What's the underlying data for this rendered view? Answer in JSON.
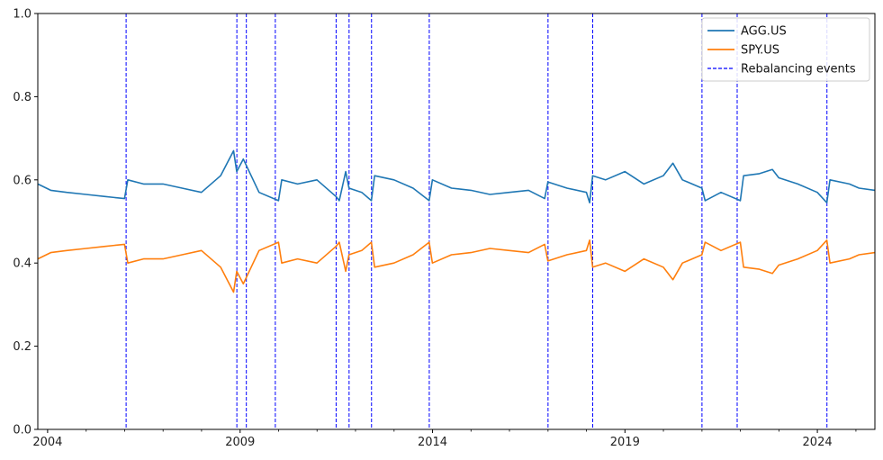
{
  "chart_data": {
    "type": "line",
    "x_type": "date",
    "xlim": [
      "2003-09-30",
      "2025-06-30"
    ],
    "ylim": [
      0,
      1
    ],
    "yticks": [
      0.0,
      0.2,
      0.4,
      0.6,
      0.8,
      1.0
    ],
    "ytick_labels": [
      "0.0",
      "0.2",
      "0.4",
      "0.6",
      "0.8",
      "1.0"
    ],
    "xticks": [
      "2004-01-01",
      "2009-01-01",
      "2014-01-01",
      "2019-01-01",
      "2024-01-01"
    ],
    "xtick_labels": [
      "2004",
      "2009",
      "2014",
      "2019",
      "2024"
    ],
    "grid": false,
    "legend_position": "top-right",
    "legend": [
      "AGG.US",
      "SPY.US",
      "Rebalancing events"
    ],
    "series": [
      {
        "name": "AGG.US",
        "color": "#1f77b4",
        "x": [
          "2003-09-30",
          "2004-01-31",
          "2004-06-30",
          "2004-12-31",
          "2005-06-30",
          "2005-12-31",
          "2006-01-31",
          "2006-06-30",
          "2006-12-31",
          "2007-06-30",
          "2007-12-31",
          "2008-06-30",
          "2008-10-31",
          "2008-11-30",
          "2009-01-31",
          "2009-06-30",
          "2009-12-31",
          "2010-01-31",
          "2010-06-30",
          "2010-12-31",
          "2011-06-30",
          "2011-07-31",
          "2011-09-30",
          "2011-10-31",
          "2012-02-29",
          "2012-05-31",
          "2012-06-30",
          "2012-12-31",
          "2013-06-30",
          "2013-11-30",
          "2013-12-31",
          "2014-06-30",
          "2014-12-31",
          "2015-06-30",
          "2015-12-31",
          "2016-06-30",
          "2016-11-30",
          "2016-12-31",
          "2017-06-30",
          "2017-12-31",
          "2018-01-31",
          "2018-02-28",
          "2018-06-30",
          "2018-12-31",
          "2019-06-30",
          "2019-12-31",
          "2020-03-31",
          "2020-06-30",
          "2020-12-31",
          "2021-01-31",
          "2021-06-30",
          "2021-12-31",
          "2022-01-31",
          "2022-06-30",
          "2022-10-31",
          "2022-12-31",
          "2023-06-30",
          "2023-12-31",
          "2024-03-31",
          "2024-04-30",
          "2024-10-31",
          "2025-01-31",
          "2025-06-30"
        ],
        "values": [
          0.59,
          0.575,
          0.57,
          0.565,
          0.56,
          0.555,
          0.6,
          0.59,
          0.59,
          0.58,
          0.57,
          0.61,
          0.67,
          0.62,
          0.65,
          0.57,
          0.55,
          0.6,
          0.59,
          0.6,
          0.56,
          0.55,
          0.62,
          0.58,
          0.57,
          0.55,
          0.61,
          0.6,
          0.58,
          0.55,
          0.6,
          0.58,
          0.575,
          0.565,
          0.57,
          0.575,
          0.555,
          0.595,
          0.58,
          0.57,
          0.545,
          0.61,
          0.6,
          0.62,
          0.59,
          0.61,
          0.64,
          0.6,
          0.58,
          0.55,
          0.57,
          0.55,
          0.61,
          0.615,
          0.625,
          0.605,
          0.59,
          0.57,
          0.545,
          0.6,
          0.59,
          0.58,
          0.575
        ]
      },
      {
        "name": "SPY.US",
        "color": "#ff7f0e",
        "x": [
          "2003-09-30",
          "2004-01-31",
          "2004-06-30",
          "2004-12-31",
          "2005-06-30",
          "2005-12-31",
          "2006-01-31",
          "2006-06-30",
          "2006-12-31",
          "2007-06-30",
          "2007-12-31",
          "2008-06-30",
          "2008-10-31",
          "2008-11-30",
          "2009-01-31",
          "2009-06-30",
          "2009-12-31",
          "2010-01-31",
          "2010-06-30",
          "2010-12-31",
          "2011-06-30",
          "2011-07-31",
          "2011-09-30",
          "2011-10-31",
          "2012-02-29",
          "2012-05-31",
          "2012-06-30",
          "2012-12-31",
          "2013-06-30",
          "2013-11-30",
          "2013-12-31",
          "2014-06-30",
          "2014-12-31",
          "2015-06-30",
          "2015-12-31",
          "2016-06-30",
          "2016-11-30",
          "2016-12-31",
          "2017-06-30",
          "2017-12-31",
          "2018-01-31",
          "2018-02-28",
          "2018-06-30",
          "2018-12-31",
          "2019-06-30",
          "2019-12-31",
          "2020-03-31",
          "2020-06-30",
          "2020-12-31",
          "2021-01-31",
          "2021-06-30",
          "2021-12-31",
          "2022-01-31",
          "2022-06-30",
          "2022-10-31",
          "2022-12-31",
          "2023-06-30",
          "2023-12-31",
          "2024-03-31",
          "2024-04-30",
          "2024-10-31",
          "2025-01-31",
          "2025-06-30"
        ],
        "values": [
          0.41,
          0.425,
          0.43,
          0.435,
          0.44,
          0.445,
          0.4,
          0.41,
          0.41,
          0.42,
          0.43,
          0.39,
          0.33,
          0.38,
          0.35,
          0.43,
          0.45,
          0.4,
          0.41,
          0.4,
          0.44,
          0.45,
          0.38,
          0.42,
          0.43,
          0.45,
          0.39,
          0.4,
          0.42,
          0.45,
          0.4,
          0.42,
          0.425,
          0.435,
          0.43,
          0.425,
          0.445,
          0.405,
          0.42,
          0.43,
          0.455,
          0.39,
          0.4,
          0.38,
          0.41,
          0.39,
          0.36,
          0.4,
          0.42,
          0.45,
          0.43,
          0.45,
          0.39,
          0.385,
          0.375,
          0.395,
          0.41,
          0.43,
          0.455,
          0.4,
          0.41,
          0.42,
          0.425
        ]
      }
    ],
    "rebalancing_events": {
      "name": "Rebalancing events",
      "color": "#0000ff",
      "dates": [
        "2006-01-15",
        "2008-12-01",
        "2009-03-01",
        "2009-12-01",
        "2011-07-01",
        "2011-11-01",
        "2012-06-01",
        "2013-12-01",
        "2017-01-01",
        "2018-03-01",
        "2021-01-01",
        "2021-12-01",
        "2024-04-01"
      ]
    }
  }
}
